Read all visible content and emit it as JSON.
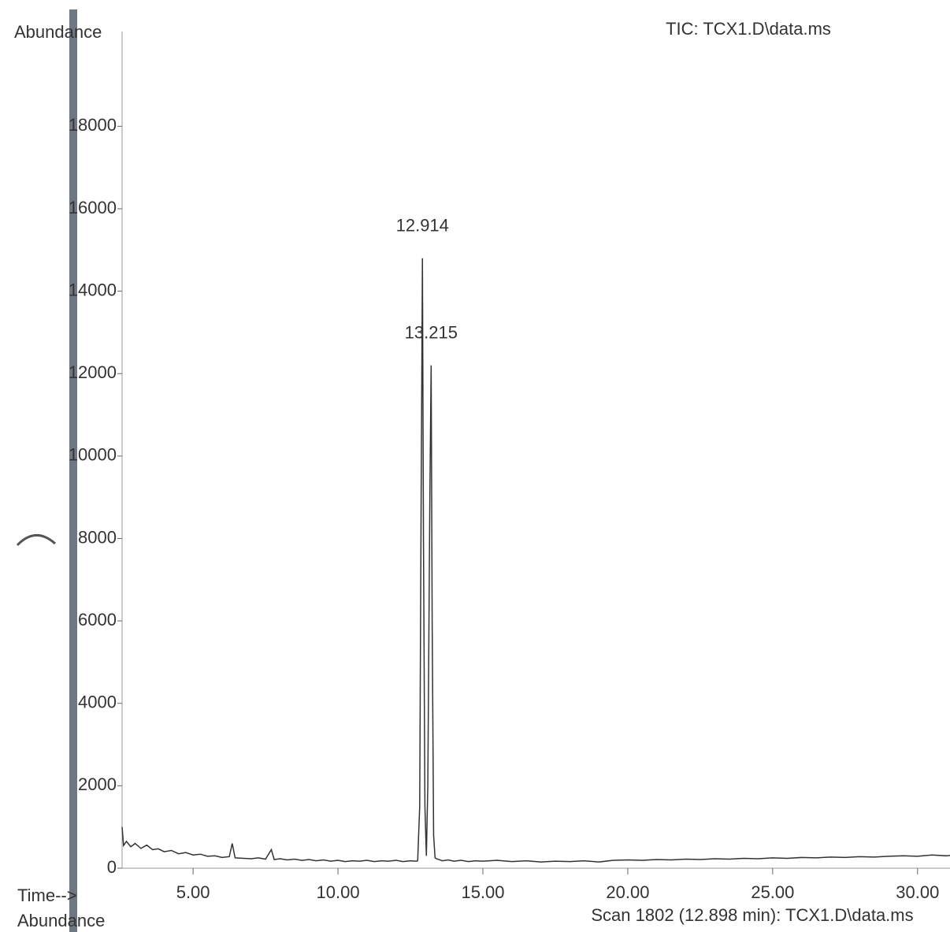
{
  "chart_data": {
    "type": "line",
    "title": "TIC: TCX1.D\\data.ms",
    "y_label": "Abundance",
    "x_label": "Time-->",
    "footer_left": "Abundance",
    "footer_right": "Scan 1802 (12.898 min): TCX1.D\\data.ms",
    "color": "#333333",
    "xlim": [
      2.55,
      31.12
    ],
    "ylim": [
      0,
      20300
    ],
    "xticks": [
      {
        "value": 5,
        "label": "5.00"
      },
      {
        "value": 10,
        "label": "10.00"
      },
      {
        "value": 15,
        "label": "15.00"
      },
      {
        "value": 20,
        "label": "20.00"
      },
      {
        "value": 25,
        "label": "25.00"
      },
      {
        "value": 30,
        "label": "30.00"
      }
    ],
    "yticks": [
      0,
      2000,
      4000,
      6000,
      8000,
      10000,
      12000,
      14000,
      16000,
      18000
    ],
    "peak_labels": [
      {
        "label": "12.914",
        "x": 12.914,
        "y": 14800
      },
      {
        "label": "13.215",
        "x": 13.215,
        "y": 12200
      }
    ],
    "x": [
      2.55,
      2.6,
      2.7,
      2.85,
      3.0,
      3.2,
      3.4,
      3.6,
      3.8,
      4.0,
      4.25,
      4.5,
      4.75,
      5.0,
      5.25,
      5.5,
      5.75,
      6.0,
      6.25,
      6.35,
      6.45,
      6.75,
      7.0,
      7.25,
      7.5,
      7.7,
      7.8,
      8.0,
      8.25,
      8.5,
      8.75,
      9.0,
      9.25,
      9.5,
      9.75,
      10.0,
      10.25,
      10.5,
      10.75,
      11.0,
      11.25,
      11.5,
      11.75,
      12.0,
      12.25,
      12.5,
      12.7,
      12.75,
      12.82,
      12.87,
      12.914,
      12.95,
      13.0,
      13.05,
      13.1,
      13.17,
      13.215,
      13.25,
      13.3,
      13.35,
      13.4,
      13.6,
      13.8,
      14.0,
      14.25,
      14.5,
      14.75,
      15.0,
      15.5,
      16.0,
      16.5,
      17.0,
      17.5,
      18.0,
      18.5,
      19.0,
      19.5,
      20.0,
      20.5,
      21.0,
      21.5,
      22.0,
      22.5,
      23.0,
      23.5,
      24.0,
      24.5,
      25.0,
      25.5,
      26.0,
      26.5,
      27.0,
      27.5,
      28.0,
      28.5,
      29.0,
      29.5,
      30.0,
      30.5,
      31.0,
      31.12
    ],
    "values": [
      1000,
      550,
      650,
      520,
      600,
      480,
      560,
      450,
      470,
      400,
      430,
      350,
      380,
      320,
      340,
      290,
      300,
      260,
      280,
      600,
      250,
      240,
      230,
      250,
      220,
      450,
      210,
      230,
      200,
      220,
      190,
      210,
      180,
      200,
      170,
      190,
      160,
      180,
      170,
      190,
      160,
      180,
      170,
      190,
      160,
      180,
      170,
      180,
      1500,
      9000,
      14800,
      8000,
      1500,
      300,
      2000,
      9000,
      12200,
      6000,
      800,
      250,
      230,
      180,
      200,
      170,
      190,
      160,
      180,
      170,
      190,
      160,
      180,
      150,
      170,
      160,
      180,
      150,
      190,
      200,
      190,
      210,
      200,
      220,
      210,
      230,
      220,
      240,
      230,
      250,
      240,
      260,
      250,
      270,
      260,
      280,
      270,
      290,
      300,
      290,
      320,
      300,
      310
    ]
  }
}
